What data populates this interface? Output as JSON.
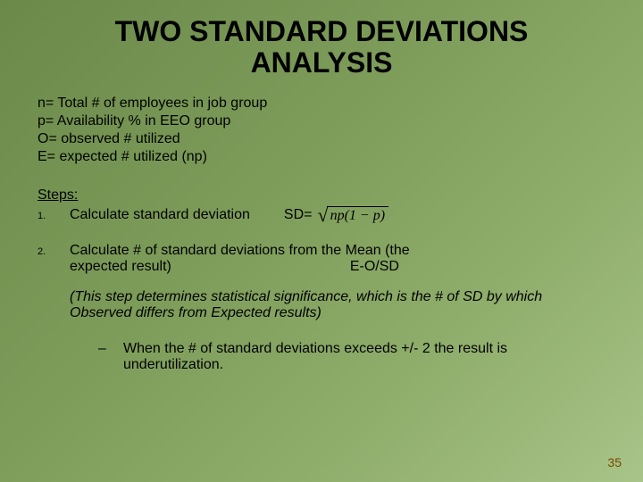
{
  "title_line1": "TWO STANDARD DEVIATIONS",
  "title_line2": "ANALYSIS",
  "title_fontsize": 32,
  "defs": {
    "n": "n= Total # of employees in job group",
    "p": "p= Availability % in EEO group",
    "O": "O= observed # utilized",
    "E": "E= expected # utilized (np)",
    "fontsize": 16
  },
  "steps_label": "Steps:",
  "step1": {
    "num": "1.",
    "text": "Calculate standard deviation",
    "sd_label": "SD=",
    "radicand": "np(1 − p)"
  },
  "step2": {
    "num": "2.",
    "line1": "Calculate # of standard deviations from the Mean (the",
    "line2a": "expected result)",
    "formula": "E-O/SD",
    "note": "(This step determines statistical significance, which is the # of SD by which Observed differs from Expected results)"
  },
  "bullet": {
    "dash": "–",
    "text": "When the # of standard deviations exceeds +/- 2 the result is underutilization."
  },
  "body_fontsize": 16,
  "num_fontsize": 11,
  "page_number": "35",
  "pagenum_fontsize": 14,
  "colors": {
    "text": "#000000",
    "pagenum": "#7a4a00",
    "bg_start": "#6b8a4a",
    "bg_end": "#a8c488"
  }
}
